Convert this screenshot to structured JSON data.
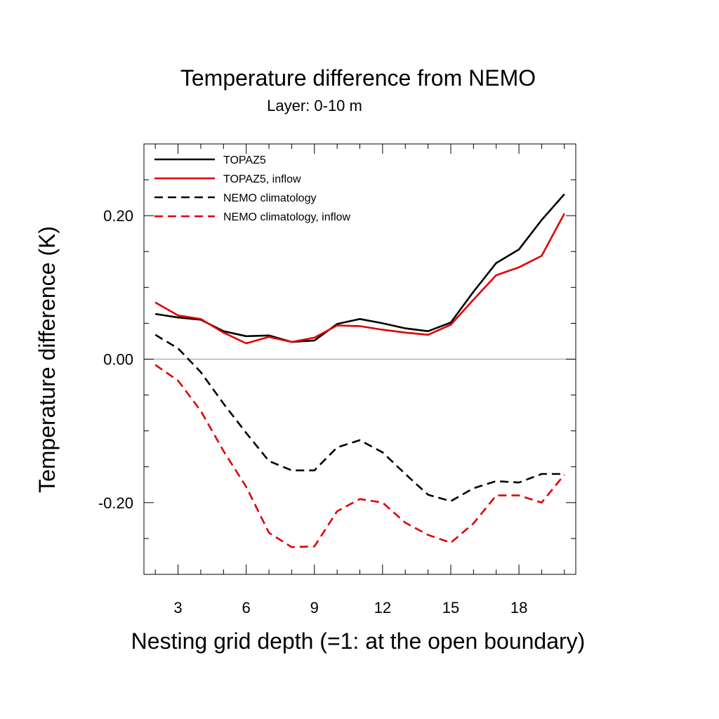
{
  "chart_data": {
    "type": "line",
    "title": "Temperature difference from NEMO",
    "subtitle": "Layer: 0-10 m",
    "xlabel": "Nesting grid depth (=1: at the open boundary)",
    "ylabel": "Temperature difference (K)",
    "xlim": [
      1.5,
      20.5
    ],
    "ylim": [
      -0.3,
      0.3
    ],
    "x_ticks": [
      3,
      6,
      9,
      12,
      15,
      18
    ],
    "x_tick_labels": [
      "3",
      "6",
      "9",
      "12",
      "15",
      "18"
    ],
    "y_ticks": [
      0.2,
      0.0,
      -0.2
    ],
    "y_tick_labels": [
      "0.20",
      "0.00",
      "-0.20"
    ],
    "zero_line": true,
    "grid": false,
    "legend_position": "top-left",
    "x": [
      2,
      3,
      4,
      5,
      6,
      7,
      8,
      9,
      10,
      11,
      12,
      13,
      14,
      15,
      16,
      17,
      18,
      19,
      20
    ],
    "series": [
      {
        "name": "TOPAZ5",
        "color": "#000000",
        "dash": "solid",
        "values": [
          0.063,
          0.058,
          0.055,
          0.039,
          0.032,
          0.033,
          0.024,
          0.026,
          0.049,
          0.056,
          0.05,
          0.043,
          0.039,
          0.051,
          0.094,
          0.134,
          0.153,
          0.194,
          0.23
        ]
      },
      {
        "name": "TOPAZ5, inflow",
        "color": "#e00000",
        "dash": "solid",
        "values": [
          0.079,
          0.061,
          0.056,
          0.037,
          0.022,
          0.031,
          0.024,
          0.03,
          0.047,
          0.046,
          0.041,
          0.037,
          0.034,
          0.048,
          0.083,
          0.117,
          0.128,
          0.144,
          0.203
        ]
      },
      {
        "name": "NEMO climatology",
        "color": "#000000",
        "dash": "dashed",
        "values": [
          0.034,
          0.015,
          -0.018,
          -0.062,
          -0.103,
          -0.142,
          -0.155,
          -0.155,
          -0.123,
          -0.113,
          -0.13,
          -0.16,
          -0.189,
          -0.198,
          -0.18,
          -0.17,
          -0.172,
          -0.16,
          -0.16
        ]
      },
      {
        "name": "NEMO climatology, inflow",
        "color": "#e00000",
        "dash": "dashed",
        "values": [
          -0.008,
          -0.03,
          -0.072,
          -0.128,
          -0.178,
          -0.242,
          -0.262,
          -0.261,
          -0.212,
          -0.195,
          -0.2,
          -0.228,
          -0.245,
          -0.256,
          -0.229,
          -0.19,
          -0.19,
          -0.2,
          -0.161
        ]
      }
    ]
  }
}
